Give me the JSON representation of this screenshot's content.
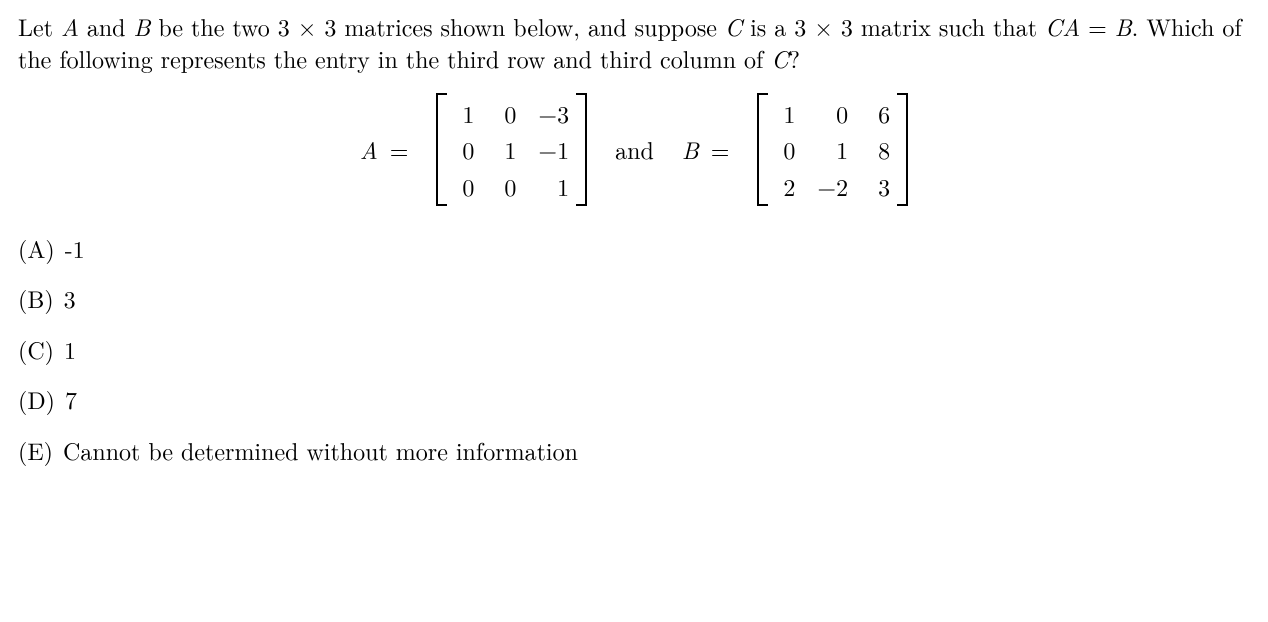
{
  "prompt": {
    "line": "Let A and B be the two 3 × 3 matrices shown below, and suppose C is a 3 × 3 matrix such that CA = B. Which of the following represents the entry in the third row and third column of C?"
  },
  "matrices": {
    "A": {
      "label": "A =",
      "rows": [
        [
          "1",
          "0",
          "−3"
        ],
        [
          "0",
          "1",
          "−1"
        ],
        [
          "0",
          "0",
          "1"
        ]
      ]
    },
    "and": "and",
    "B": {
      "label": "B =",
      "rows": [
        [
          "1",
          "0",
          "6"
        ],
        [
          "0",
          "1",
          "8"
        ],
        [
          "2",
          "−2",
          "3"
        ]
      ]
    }
  },
  "choices": [
    {
      "label": "(A)",
      "text": "-1"
    },
    {
      "label": "(B)",
      "text": "3"
    },
    {
      "label": "(C)",
      "text": "1"
    },
    {
      "label": "(D)",
      "text": "7"
    },
    {
      "label": "(E)",
      "text": "Cannot be determined without more information"
    }
  ]
}
